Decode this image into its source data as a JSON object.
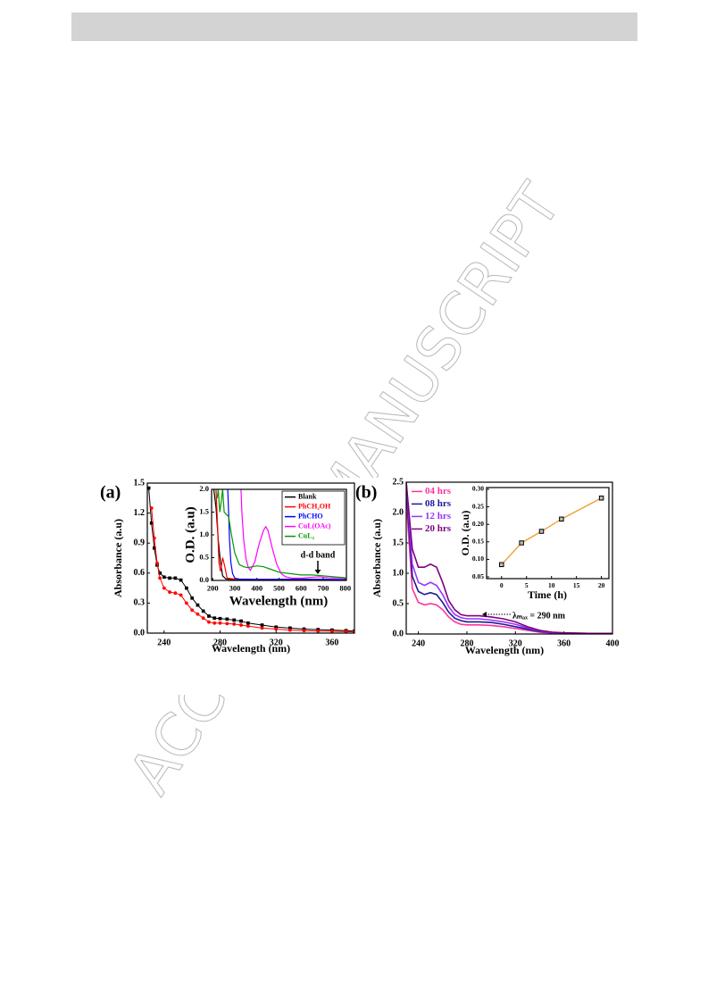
{
  "watermark": "ACCEPTED MANUSCRIPT",
  "chart_data": [
    {
      "type": "line",
      "panel_label": "(a)",
      "xlabel": "Wavelength (nm)",
      "ylabel": "Absorbance (a.u)",
      "xlim": [
        228,
        376
      ],
      "xticks": [
        240,
        280,
        320,
        360
      ],
      "ylim": [
        0,
        1.5
      ],
      "yticks": [
        {
          "value": 0,
          "label": "0.0"
        },
        0.3,
        0.6,
        0.9,
        1.2,
        1.5
      ],
      "x": [
        229,
        231,
        233,
        235,
        237,
        240,
        244,
        248,
        252,
        256,
        260,
        264,
        268,
        272,
        276,
        280,
        285,
        290,
        295,
        300,
        310,
        320,
        330,
        340,
        350,
        360,
        370,
        376
      ],
      "series": [
        {
          "color": "#000000",
          "marker": "square",
          "values": [
            1.45,
            1.1,
            0.85,
            0.68,
            0.6,
            0.56,
            0.55,
            0.55,
            0.53,
            0.45,
            0.35,
            0.28,
            0.22,
            0.17,
            0.15,
            0.145,
            0.14,
            0.13,
            0.12,
            0.1,
            0.08,
            0.06,
            0.05,
            0.04,
            0.035,
            0.03,
            0.025,
            0.02
          ]
        },
        {
          "color": "#ff0000",
          "marker": "circle",
          "values": [
            null,
            1.25,
            0.95,
            0.7,
            0.55,
            0.45,
            0.41,
            0.4,
            0.38,
            0.3,
            0.23,
            0.19,
            0.15,
            0.11,
            0.1,
            0.1,
            0.095,
            0.09,
            0.08,
            0.07,
            0.05,
            0.04,
            0.03,
            0.025,
            0.02,
            0.018,
            0.015,
            0.012
          ]
        }
      ]
    },
    {
      "type": "line",
      "xlabel": "Wavelength (nm)",
      "ylabel": "O.D. (a.u)",
      "legend": "upper right",
      "annotation": "d-d band",
      "xlim": [
        195,
        805
      ],
      "xticks": [
        200,
        300,
        400,
        500,
        600,
        700,
        800
      ],
      "ylim": [
        0,
        2.0
      ],
      "yticks": [
        {
          "value": 0,
          "label": "0.0"
        },
        0.5,
        {
          "value": 1,
          "label": "1.0"
        },
        1.5,
        {
          "value": 2,
          "label": "2.0"
        }
      ],
      "series": [
        {
          "name": "Blank",
          "color": "#000000",
          "x": [
            205,
            215,
            225,
            235,
            245,
            260,
            300,
            400,
            600,
            800
          ],
          "values": [
            2.0,
            1.6,
            0.9,
            0.4,
            0.1,
            0.03,
            0.02,
            0.01,
            0.02,
            0.01
          ]
        },
        {
          "name": "PhCH₂OH",
          "color": "#ff0000",
          "x": [
            215,
            222,
            228,
            235,
            245,
            255,
            265,
            300,
            500,
            800
          ],
          "values": [
            2.0,
            1.2,
            0.4,
            0.2,
            0.5,
            0.3,
            0.05,
            0.03,
            0.02,
            0.02
          ]
        },
        {
          "name": "PhCHO",
          "color": "#0000ff",
          "x": [
            268,
            272,
            276,
            282,
            290,
            300,
            320,
            400,
            600,
            800
          ],
          "values": [
            2.0,
            1.5,
            0.9,
            0.4,
            0.15,
            0.05,
            0.03,
            0.02,
            0.03,
            0.02
          ]
        },
        {
          "name": "CuL(OAc)",
          "color": "#ff00ff",
          "x": [
            328,
            332,
            340,
            350,
            360,
            370,
            390,
            410,
            430,
            440,
            450,
            470,
            490,
            510,
            530,
            560,
            600,
            650,
            680,
            720,
            800
          ],
          "values": [
            2.0,
            1.5,
            0.9,
            0.5,
            0.3,
            0.22,
            0.4,
            0.8,
            1.1,
            1.18,
            1.1,
            0.7,
            0.35,
            0.15,
            0.08,
            0.05,
            0.05,
            0.07,
            0.08,
            0.06,
            0.05
          ]
        },
        {
          "name": "CuL₂",
          "color": "#009900",
          "x": [
            220,
            225,
            232,
            238,
            245,
            252,
            262,
            272,
            285,
            300,
            320,
            340,
            360,
            380,
            400,
            430,
            460,
            500,
            550,
            600,
            650,
            700,
            750,
            800
          ],
          "values": [
            1.8,
            2.0,
            1.5,
            1.7,
            2.0,
            1.5,
            1.45,
            1.4,
            1.0,
            0.6,
            0.35,
            0.3,
            0.28,
            0.3,
            0.32,
            0.3,
            0.25,
            0.18,
            0.15,
            0.12,
            0.12,
            0.1,
            0.08,
            0.06
          ]
        }
      ]
    },
    {
      "type": "line",
      "panel_label": "(b)",
      "xlabel": "Wavelength (nm)",
      "ylabel": "Absorbance (a.u)",
      "legend": "upper left",
      "annotation": "λₘₐₓ = 290 nm",
      "xlim": [
        230,
        400
      ],
      "xticks": [
        240,
        280,
        320,
        360,
        400
      ],
      "ylim": [
        0,
        2.5
      ],
      "yticks": [
        {
          "value": 0,
          "label": "0.0"
        },
        0.5,
        {
          "value": 1,
          "label": "1.0"
        },
        1.5,
        {
          "value": 2,
          "label": "2.0"
        },
        2.5
      ],
      "x": [
        230,
        235,
        240,
        245,
        250,
        255,
        260,
        265,
        270,
        275,
        280,
        290,
        300,
        310,
        320,
        330,
        340,
        350,
        360,
        380,
        400
      ],
      "series": [
        {
          "name": "04 hrs",
          "color": "#ff3399",
          "values": [
            2.2,
            0.75,
            0.52,
            0.48,
            0.5,
            0.48,
            0.4,
            0.28,
            0.2,
            0.16,
            0.15,
            0.15,
            0.14,
            0.12,
            0.09,
            0.06,
            0.03,
            0.015,
            0.01,
            0.005,
            0.005
          ]
        },
        {
          "name": "08 hrs",
          "color": "#1a1a99",
          "values": [
            2.4,
            0.95,
            0.7,
            0.65,
            0.68,
            0.65,
            0.52,
            0.36,
            0.26,
            0.22,
            0.2,
            0.2,
            0.19,
            0.16,
            0.12,
            0.08,
            0.04,
            0.02,
            0.01,
            0.01,
            0.01
          ]
        },
        {
          "name": "12 hrs",
          "color": "#9933ff",
          "values": [
            2.5,
            1.15,
            0.85,
            0.8,
            0.85,
            0.8,
            0.65,
            0.45,
            0.32,
            0.27,
            0.25,
            0.25,
            0.23,
            0.2,
            0.16,
            0.1,
            0.05,
            0.02,
            0.015,
            0.01,
            0.01
          ]
        },
        {
          "name": "20 hrs",
          "color": "#800080",
          "values": [
            2.5,
            1.4,
            1.1,
            1.1,
            1.15,
            1.1,
            0.85,
            0.55,
            0.4,
            0.32,
            0.3,
            0.3,
            0.28,
            0.25,
            0.2,
            0.12,
            0.06,
            0.03,
            0.02,
            0.01,
            0.01
          ]
        }
      ]
    },
    {
      "type": "line",
      "xlabel": "Time (h)",
      "ylabel": "O.D. (a.u)",
      "xlim": [
        -3,
        21.5
      ],
      "xticks": [
        0,
        5,
        10,
        15,
        20
      ],
      "ylim": [
        0.045,
        0.305
      ],
      "yticks": [
        0.05,
        {
          "value": 0.1,
          "label": "0.10"
        },
        0.15,
        {
          "value": 0.2,
          "label": "0.20"
        },
        0.25,
        {
          "value": 0.3,
          "label": "0.30"
        }
      ],
      "x": [
        0,
        4,
        8,
        12,
        20
      ],
      "series": [
        {
          "color": "#000000",
          "line_color": "#f0a030",
          "marker": "square",
          "values": [
            0.085,
            0.147,
            0.18,
            0.215,
            0.275
          ],
          "errors": [
            0.005,
            0.005,
            0.005,
            0.005,
            0.005
          ]
        }
      ]
    }
  ]
}
